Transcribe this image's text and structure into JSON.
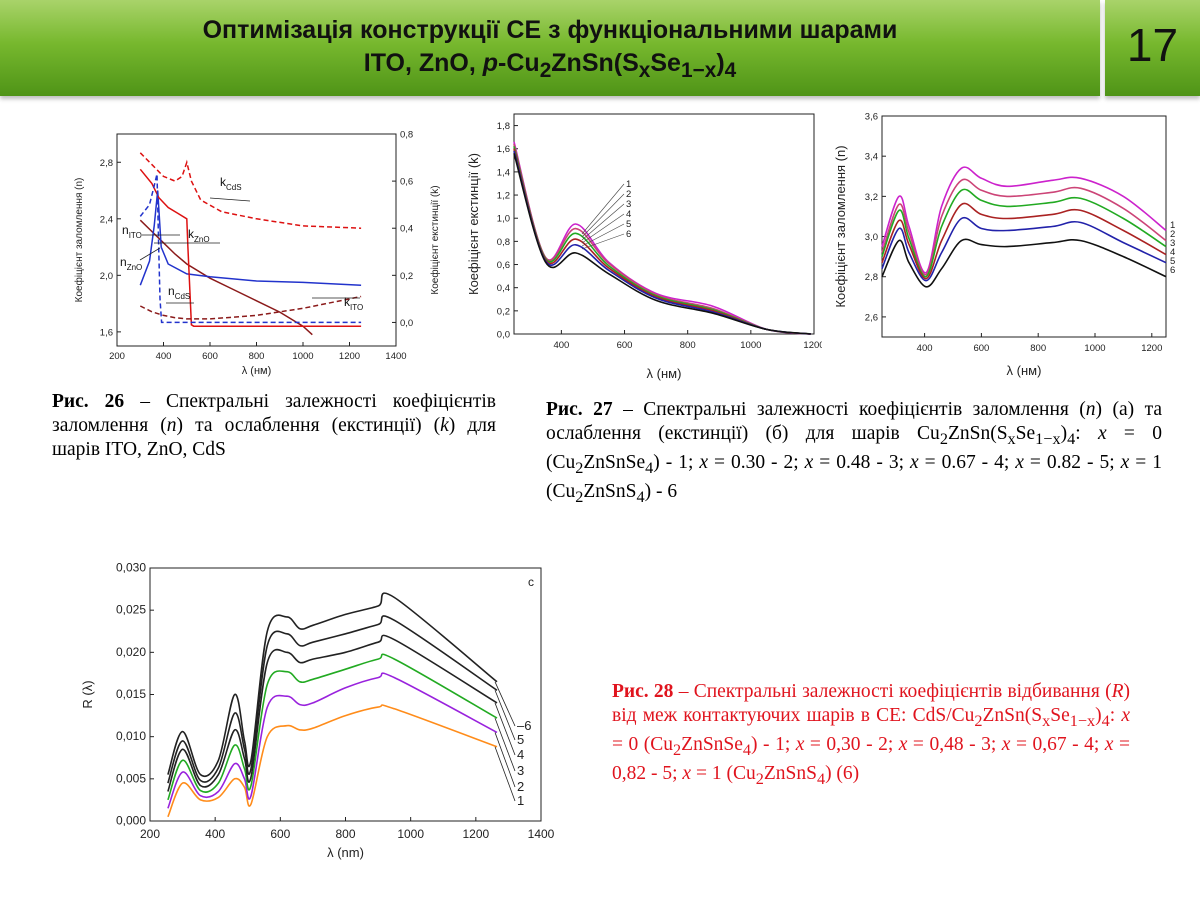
{
  "header": {
    "title_line1": "Оптимізація конструкції СЕ з функціональними шарами",
    "title_line2_a": "ITO, ZnO, ",
    "title_line2_p": "p",
    "title_line2_b": "-Cu",
    "title_line2_sub2": "2",
    "title_line2_c": "ZnSn(S",
    "title_line2_subx": "x",
    "title_line2_d": "Se",
    "title_line2_sub1x": "1−x",
    "title_line2_e": ")",
    "title_line2_sub4": "4",
    "slide_number": "17"
  },
  "captions": {
    "fig26": {
      "label": "Рис. 26",
      "pre": " – Спектральні залежності коефіцієнтів заломлення (",
      "n": "n",
      "mid": ") та ослаблення (екстинції) (",
      "k": "k",
      "post": ") для шарів ITO, ZnO, CdS"
    },
    "fig27": {
      "label": "Рис. 27",
      "p1": " – Спектральні залежності коефіцієнтів заломлення (",
      "n": "n",
      "p2": ") (а) та ослаблення (екстинції) (б) для шарів Cu",
      "sub2": "2",
      "p3": "ZnSn(S",
      "subx": "x",
      "p4": "Se",
      "sub1x": "1−x",
      "p5": ")",
      "sub4": "4",
      "p6": ": ",
      "x": "x",
      "v1": " = 0 (Cu",
      "v1b": "ZnSnSe",
      "v1c": ") - 1; ",
      "v2": " = 0.30 - 2; ",
      "v3": " = 0.48 - 3; ",
      "v4": " = 0.67 - 4; ",
      "v5": " = 0.82 - 5; ",
      "v6": " = 1 (Cu",
      "v6b": "ZnSnS",
      "v6c": ") - 6"
    },
    "fig28": {
      "label": "Рис. 28",
      "p1": " – Спектральні залежності коефіцієнтів відбивання (",
      "R": "R",
      "p2": ") від меж контактуючих шарів в СЕ: CdS/Cu",
      "sub2": "2",
      "p3": "ZnSn(S",
      "subx": "x",
      "p4": "Se",
      "sub1x": "1−x",
      "p5": ")",
      "sub4": "4",
      "p6": ": ",
      "x": "x",
      "v1": " = 0 (Cu",
      "v1b": "ZnSnSe",
      "v1c": ") - 1; ",
      "v2": " = 0,30 - 2; ",
      "v3": " = 0,48 - 3; ",
      "v4": " = 0,67 - 4; ",
      "v5": " = 0,82 - 5; ",
      "v6": " = 1 (Cu",
      "v6b": "ZnSnS",
      "v6c": ") (6)"
    }
  },
  "chart_data": [
    {
      "id": "fig26",
      "type": "line",
      "xlabel": "λ (нм)",
      "ylabel": "Коефіцієнт заломлення (n)",
      "y2label": "Коефіцієнт екстинції (k)",
      "xlim": [
        200,
        1400
      ],
      "ylim": [
        1.5,
        3.0
      ],
      "y2lim": [
        -0.1,
        0.8
      ],
      "xticks": [
        200,
        400,
        600,
        800,
        1000,
        1200,
        1400
      ],
      "yticks": [
        1.6,
        2.0,
        2.4,
        2.8
      ],
      "ytick_labels": [
        "1,6",
        "2,0",
        "2,4",
        "2,8"
      ],
      "y2ticks": [
        0.0,
        0.2,
        0.4,
        0.6,
        0.8
      ],
      "y2tick_labels": [
        "0,0",
        "0,2",
        "0,4",
        "0,6",
        "0,8"
      ],
      "series": [
        {
          "name": "n_ITO",
          "color": "#8b1a1a",
          "dash": false,
          "axis": "left",
          "points": [
            [
              300,
              2.39
            ],
            [
              350,
              2.31
            ],
            [
              400,
              2.23
            ],
            [
              450,
              2.15
            ],
            [
              500,
              2.08
            ],
            [
              600,
              1.98
            ],
            [
              700,
              1.9
            ],
            [
              800,
              1.82
            ],
            [
              900,
              1.74
            ],
            [
              1000,
              1.64
            ],
            [
              1040,
              1.58
            ]
          ]
        },
        {
          "name": "n_ZnO",
          "color": "#2233cc",
          "dash": false,
          "axis": "left",
          "points": [
            [
              300,
              1.93
            ],
            [
              340,
              2.1
            ],
            [
              360,
              2.35
            ],
            [
              375,
              2.6
            ],
            [
              390,
              2.2
            ],
            [
              420,
              2.08
            ],
            [
              500,
              2.01
            ],
            [
              600,
              1.99
            ],
            [
              800,
              1.96
            ],
            [
              1000,
              1.95
            ],
            [
              1250,
              1.93
            ]
          ]
        },
        {
          "name": "n_CdS",
          "color": "#dd1111",
          "dash": false,
          "axis": "left",
          "points": [
            [
              300,
              2.75
            ],
            [
              350,
              2.65
            ],
            [
              380,
              2.55
            ],
            [
              420,
              2.48
            ],
            [
              460,
              2.44
            ],
            [
              500,
              2.4
            ],
            [
              505,
              2.2
            ],
            [
              512,
              1.95
            ],
            [
              520,
              1.65
            ],
            [
              530,
              1.64
            ],
            [
              700,
              1.64
            ],
            [
              1000,
              1.64
            ],
            [
              1250,
              1.64
            ]
          ]
        },
        {
          "name": "k_ZnO",
          "color": "#2233cc",
          "dash": true,
          "axis": "right",
          "points": [
            [
              300,
              0.45
            ],
            [
              340,
              0.5
            ],
            [
              360,
              0.58
            ],
            [
              372,
              0.63
            ],
            [
              380,
              0.3
            ],
            [
              385,
              0.1
            ],
            [
              392,
              0.0
            ],
            [
              500,
              0.0
            ],
            [
              700,
              0.0
            ],
            [
              1000,
              0.0
            ],
            [
              1250,
              0.0
            ]
          ]
        },
        {
          "name": "k_CdS",
          "color": "#dd1111",
          "dash": true,
          "axis": "right",
          "points": [
            [
              300,
              0.72
            ],
            [
              400,
              0.62
            ],
            [
              450,
              0.6
            ],
            [
              480,
              0.62
            ],
            [
              500,
              0.68
            ],
            [
              520,
              0.6
            ],
            [
              560,
              0.52
            ],
            [
              650,
              0.47
            ],
            [
              800,
              0.44
            ],
            [
              1000,
              0.41
            ],
            [
              1250,
              0.4
            ]
          ]
        },
        {
          "name": "k_ITO",
          "color": "#8b1a1a",
          "dash": true,
          "axis": "right",
          "points": [
            [
              300,
              0.07
            ],
            [
              350,
              0.045
            ],
            [
              400,
              0.03
            ],
            [
              450,
              0.02
            ],
            [
              500,
              0.015
            ],
            [
              600,
              0.015
            ],
            [
              800,
              0.03
            ],
            [
              1000,
              0.06
            ],
            [
              1100,
              0.08
            ],
            [
              1250,
              0.11
            ]
          ]
        }
      ],
      "annotations": {
        "n_ito": "n",
        "n_ito_sub": "ITO",
        "n_zno": "n",
        "n_zno_sub": "ZnO",
        "k_zno": "k",
        "k_zno_sub": "ZnO",
        "k_cds": "k",
        "k_cds_sub": "CdS",
        "n_cds": "n",
        "n_cds_sub": "CdS",
        "k_ito": "k",
        "k_ito_sub": "ITO"
      }
    },
    {
      "id": "fig27b",
      "type": "line",
      "xlabel": "λ (нм)",
      "ylabel": "Коефіцієнт екстинції (k)",
      "xlim": [
        250,
        1200
      ],
      "ylim": [
        0.0,
        1.9
      ],
      "xticks": [
        400,
        600,
        800,
        1000,
        1200
      ],
      "xtick_labels": [
        "400",
        "600",
        "800",
        "1000",
        "1200"
      ],
      "yticks": [
        0.0,
        0.2,
        0.4,
        0.6,
        0.8,
        1.0,
        1.2,
        1.4,
        1.6,
        1.8
      ],
      "ytick_labels": [
        "0,0",
        "0,2",
        "0,4",
        "0,6",
        "0,8",
        "1,0",
        "1,2",
        "1,4",
        "1,6",
        "1,8"
      ],
      "series": [
        {
          "name": "1",
          "color": "#cc22cc",
          "values_at_anchor": [
            1.66,
            0.66,
            0.95,
            0.62,
            0.35,
            0.24,
            0.04,
            0.0
          ]
        },
        {
          "name": "2",
          "color": "#cc4477",
          "values_at_anchor": [
            1.64,
            0.66,
            0.91,
            0.61,
            0.34,
            0.22,
            0.04,
            0.0
          ]
        },
        {
          "name": "3",
          "color": "#22aa22",
          "values_at_anchor": [
            1.62,
            0.65,
            0.87,
            0.59,
            0.33,
            0.21,
            0.04,
            0.0
          ]
        },
        {
          "name": "4",
          "color": "#aa2222",
          "values_at_anchor": [
            1.6,
            0.64,
            0.82,
            0.57,
            0.32,
            0.2,
            0.04,
            0.0
          ]
        },
        {
          "name": "5",
          "color": "#2222aa",
          "values_at_anchor": [
            1.58,
            0.63,
            0.77,
            0.55,
            0.31,
            0.19,
            0.04,
            0.0
          ]
        },
        {
          "name": "6",
          "color": "#111111",
          "values_at_anchor": [
            1.56,
            0.62,
            0.7,
            0.52,
            0.29,
            0.18,
            0.04,
            0.0
          ]
        }
      ],
      "x_anchor": [
        250,
        350,
        445,
        550,
        700,
        880,
        1050,
        1190
      ],
      "legend_labels": [
        "1",
        "2",
        "3",
        "4",
        "5",
        "6"
      ]
    },
    {
      "id": "fig27a",
      "type": "line",
      "xlabel": "λ (нм)",
      "ylabel": "Коефіцієнт заломлення (n)",
      "xlim": [
        250,
        1250
      ],
      "ylim": [
        2.5,
        3.6
      ],
      "xticks": [
        400,
        600,
        800,
        1000,
        1200
      ],
      "xtick_labels": [
        "400",
        "600",
        "800",
        "1000",
        "1200"
      ],
      "yticks": [
        2.6,
        2.8,
        3.0,
        3.2,
        3.4,
        3.6
      ],
      "ytick_labels": [
        "2,6",
        "2,8",
        "3,0",
        "3,2",
        "3,4",
        "3,6"
      ],
      "x_anchor": [
        250,
        310,
        345,
        405,
        460,
        530,
        600,
        690,
        850,
        950,
        1100,
        1250
      ],
      "series": [
        {
          "name": "1",
          "color": "#cc22cc",
          "values_at_anchor": [
            2.95,
            3.2,
            3.05,
            2.82,
            3.15,
            3.34,
            3.29,
            3.25,
            3.28,
            3.29,
            3.2,
            3.03
          ]
        },
        {
          "name": "2",
          "color": "#cc4477",
          "values_at_anchor": [
            2.92,
            3.16,
            3.02,
            2.81,
            3.1,
            3.28,
            3.23,
            3.2,
            3.22,
            3.24,
            3.14,
            2.98
          ]
        },
        {
          "name": "3",
          "color": "#22aa22",
          "values_at_anchor": [
            2.9,
            3.13,
            2.99,
            2.8,
            3.05,
            3.23,
            3.18,
            3.15,
            3.17,
            3.19,
            3.09,
            2.95
          ]
        },
        {
          "name": "4",
          "color": "#aa2222",
          "values_at_anchor": [
            2.87,
            3.08,
            2.96,
            2.79,
            2.98,
            3.16,
            3.11,
            3.09,
            3.11,
            3.13,
            3.03,
            2.91
          ]
        },
        {
          "name": "5",
          "color": "#2222aa",
          "values_at_anchor": [
            2.84,
            3.04,
            2.92,
            2.78,
            2.92,
            3.09,
            3.04,
            3.03,
            3.05,
            3.07,
            2.97,
            2.87
          ]
        },
        {
          "name": "6",
          "color": "#111111",
          "values_at_anchor": [
            2.8,
            2.98,
            2.87,
            2.75,
            2.84,
            2.98,
            2.96,
            2.95,
            2.97,
            2.98,
            2.9,
            2.8
          ]
        }
      ],
      "legend_labels": [
        "1",
        "2",
        "3",
        "4",
        "5",
        "6"
      ]
    },
    {
      "id": "fig28",
      "type": "line",
      "xlabel": "λ (nm)",
      "ylabel": "R (λ)",
      "panel_label": "c",
      "xlim": [
        200,
        1400
      ],
      "ylim": [
        0.0,
        0.03
      ],
      "xticks": [
        200,
        400,
        600,
        800,
        1000,
        1200,
        1400
      ],
      "yticks": [
        0.0,
        0.005,
        0.01,
        0.015,
        0.02,
        0.025,
        0.03
      ],
      "ytick_labels": [
        "0,000",
        "0,005",
        "0,010",
        "0,015",
        "0,020",
        "0,025",
        "0,030"
      ],
      "x_anchor": [
        255,
        300,
        355,
        410,
        460,
        490,
        510,
        560,
        620,
        660,
        700,
        800,
        900,
        950,
        1265
      ],
      "series": [
        {
          "name": "1",
          "color": "#ff8c1a",
          "values_at_anchor": [
            0.0005,
            0.0045,
            0.0025,
            0.0028,
            0.005,
            0.004,
            0.002,
            0.01,
            0.0113,
            0.0108,
            0.011,
            0.0125,
            0.0135,
            0.0133,
            0.0088
          ]
        },
        {
          "name": "2",
          "color": "#9922dd",
          "values_at_anchor": [
            0.0015,
            0.0058,
            0.003,
            0.0035,
            0.0068,
            0.005,
            0.003,
            0.0135,
            0.0148,
            0.0138,
            0.014,
            0.0158,
            0.017,
            0.017,
            0.0105
          ]
        },
        {
          "name": "3",
          "color": "#22aa22",
          "values_at_anchor": [
            0.0025,
            0.0072,
            0.0036,
            0.0045,
            0.009,
            0.0062,
            0.0042,
            0.0162,
            0.0177,
            0.0165,
            0.0168,
            0.018,
            0.0192,
            0.0192,
            0.0122
          ]
        },
        {
          "name": "4",
          "color": "#222222",
          "values_at_anchor": [
            0.0035,
            0.0085,
            0.0042,
            0.0055,
            0.0108,
            0.0074,
            0.0052,
            0.0188,
            0.02,
            0.0188,
            0.0192,
            0.02,
            0.0212,
            0.0215,
            0.014
          ]
        },
        {
          "name": "5",
          "color": "#222222",
          "values_at_anchor": [
            0.0045,
            0.0095,
            0.0048,
            0.0063,
            0.0128,
            0.0085,
            0.0062,
            0.0208,
            0.0222,
            0.0208,
            0.0212,
            0.0222,
            0.0233,
            0.0238,
            0.0155
          ]
        },
        {
          "name": "6",
          "color": "#222222",
          "values_at_anchor": [
            0.0055,
            0.0106,
            0.0055,
            0.0072,
            0.015,
            0.0095,
            0.0072,
            0.0225,
            0.0242,
            0.0228,
            0.0232,
            0.0245,
            0.0255,
            0.0265,
            0.0165
          ]
        }
      ],
      "legend_labels": [
        "1",
        "2",
        "3",
        "4",
        "5",
        "6"
      ]
    }
  ]
}
